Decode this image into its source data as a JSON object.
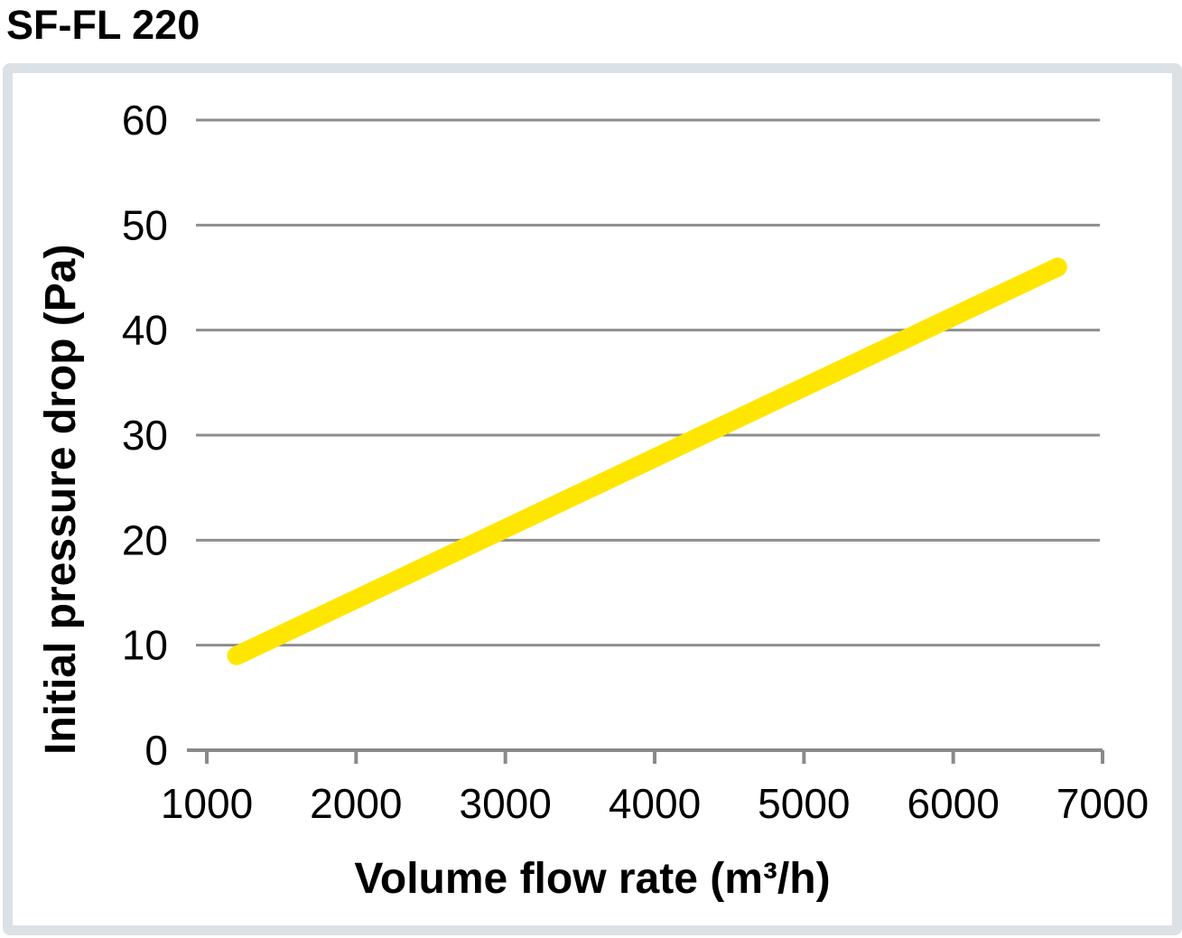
{
  "page": {
    "heading": "SF-FL 220"
  },
  "chart_data": {
    "type": "line",
    "title": "SF-FL 220",
    "xlabel": "Volume flow rate (m³/h)",
    "ylabel": "Initial pressure drop (Pa)",
    "x_ticks": [
      1000,
      2000,
      3000,
      4000,
      5000,
      6000,
      7000
    ],
    "y_ticks": [
      0,
      10,
      20,
      30,
      40,
      50,
      60
    ],
    "xlim": [
      870,
      7000
    ],
    "ylim": [
      0,
      60
    ],
    "grid": "horizontal",
    "legend": "none",
    "series": [
      {
        "name": "SF-FL 220",
        "color": "#FFE600",
        "points": [
          [
            1200,
            9
          ],
          [
            6700,
            46
          ]
        ]
      }
    ],
    "colors": {
      "gridline": "#8E8E8E",
      "axis": "#8A8A8A",
      "text": "#000000",
      "panel_border": "#DCE1E6"
    }
  }
}
